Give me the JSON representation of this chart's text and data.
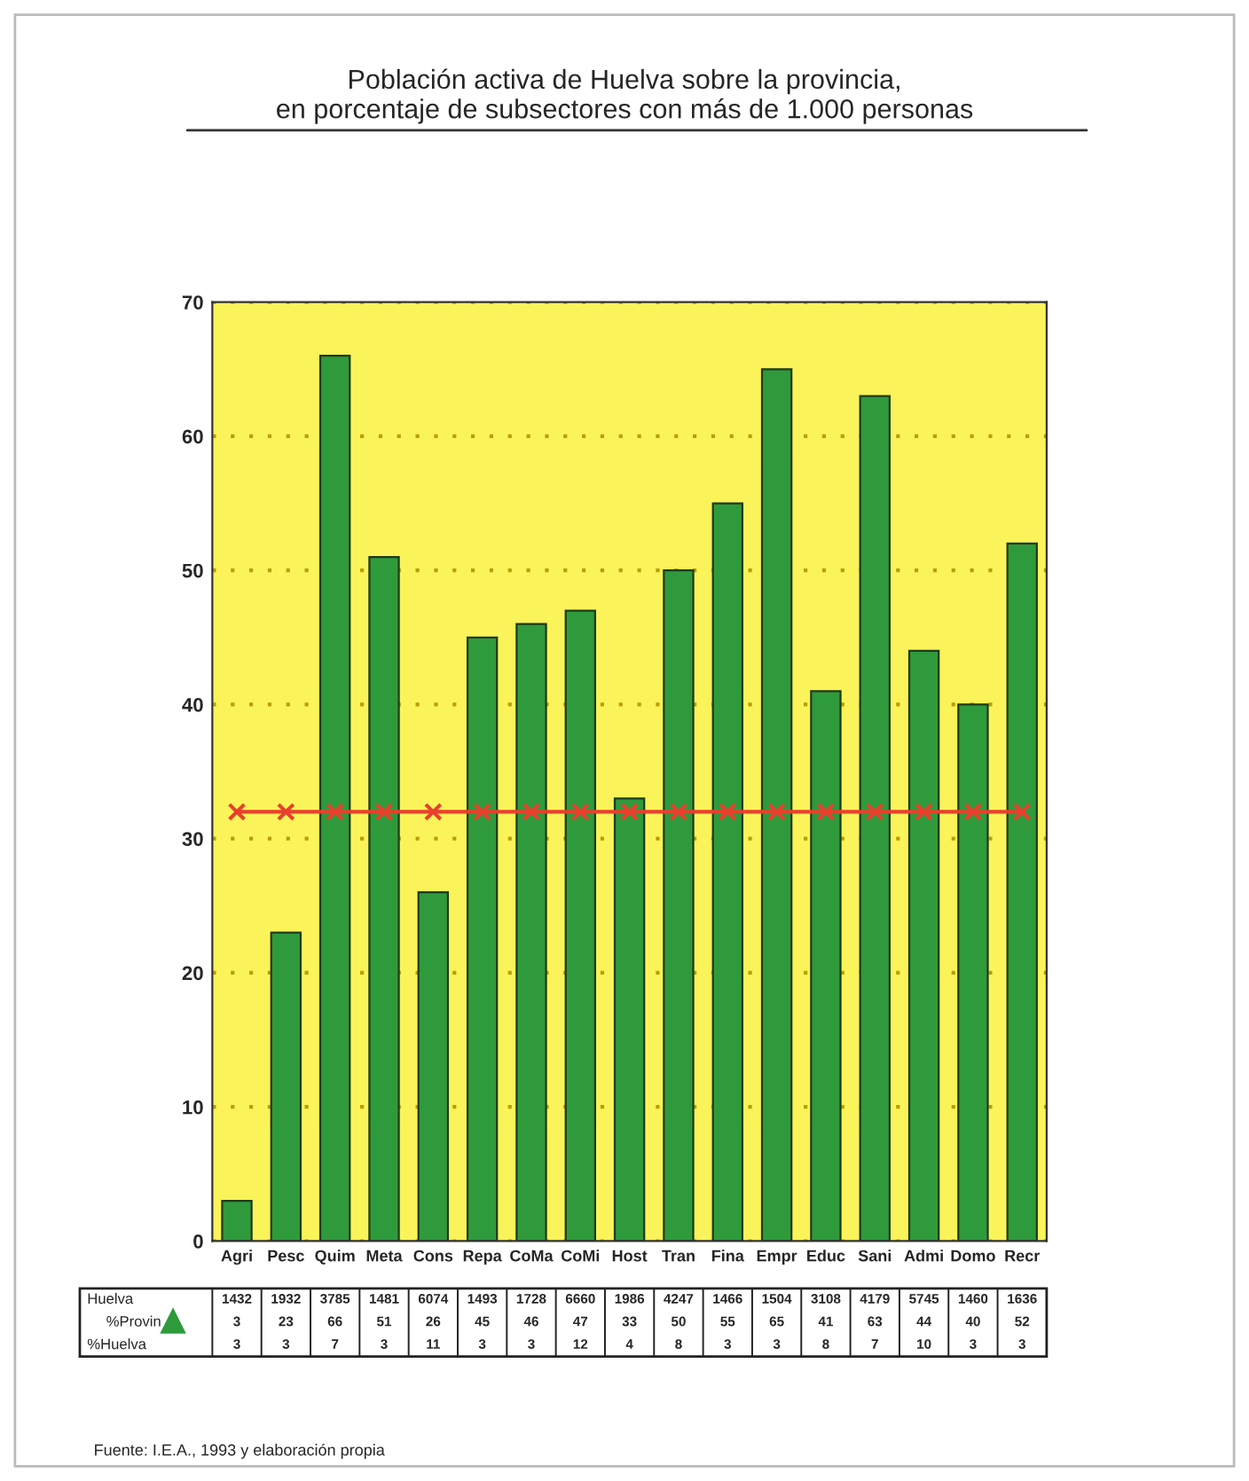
{
  "chart_data": {
    "type": "bar",
    "title": "Población activa de Huelva sobre la provincia,\nen porcentaje de subsectores con más de 1.000 personas",
    "categories": [
      "Agri",
      "Pesc",
      "Quim",
      "Meta",
      "Cons",
      "Repa",
      "CoMa",
      "CoMi",
      "Host",
      "Tran",
      "Fina",
      "Empr",
      "Educ",
      "Sani",
      "Admi",
      "Domo",
      "Recr"
    ],
    "series": [
      {
        "name": "%Provin",
        "color": "#2f9a3c",
        "values": [
          3,
          23,
          66,
          51,
          26,
          45,
          46,
          47,
          33,
          50,
          55,
          65,
          41,
          63,
          44,
          40,
          52
        ],
        "value_labels": [
          "3",
          "23",
          "66",
          "51",
          "26",
          "45",
          "46",
          "47",
          "33",
          "50",
          "55",
          "65",
          "41",
          "63",
          "44",
          "40",
          "52"
        ]
      },
      {
        "type": "line",
        "color": "#e8402c",
        "marker": "cross",
        "values": [
          32,
          32,
          32,
          32,
          32,
          32,
          32,
          32,
          32,
          32,
          32,
          32,
          32,
          32,
          32,
          32,
          32
        ]
      }
    ],
    "ylim": [
      0,
      70
    ],
    "yticks": [
      0,
      10,
      20,
      30,
      40,
      50,
      60,
      70
    ],
    "grid": "y",
    "legend": "bottom",
    "annotations": [
      "Fuente: I.E.A., 1993 y elaboración propia",
      "Huelva",
      "1432",
      "1932",
      "3785",
      "1481",
      "6074",
      "1493",
      "1728",
      "6660",
      "1986",
      "4247",
      "1466",
      "1504",
      "3108",
      "4179",
      "5745",
      "1460",
      "1636",
      "%Huelva",
      "3",
      "3",
      "7",
      "3",
      "11",
      "3",
      "3",
      "12",
      "4",
      "8",
      "3",
      "3",
      "8",
      "7",
      "10",
      "3",
      "3"
    ]
  }
}
